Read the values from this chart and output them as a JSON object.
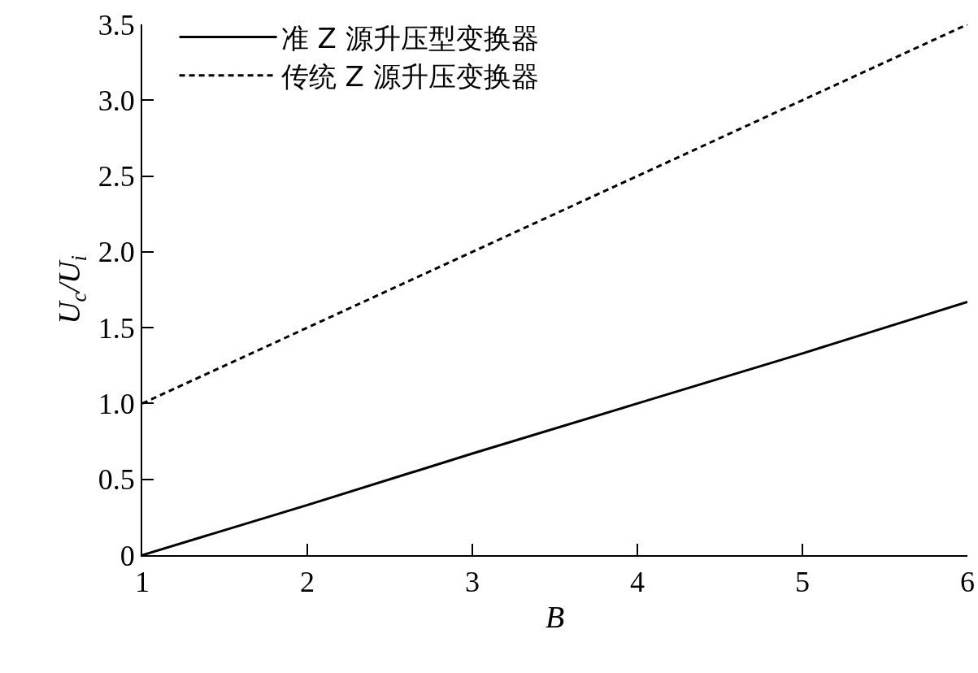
{
  "chart_data": {
    "type": "line",
    "xlabel": "B",
    "ylabel": "U$_{c}$/U$_{i}$",
    "x": [
      1,
      2,
      3,
      4,
      5,
      6
    ],
    "series": [
      {
        "name": "准 Z 源升压型变换器",
        "color": "#000000",
        "line_style": "solid",
        "values": [
          0,
          0.33,
          0.67,
          1.0,
          1.33,
          1.67
        ]
      },
      {
        "name": "传统 Z 源升压变换器",
        "color": "#000000",
        "line_style": "dashed",
        "values": [
          1,
          1.5,
          2,
          2.5,
          3,
          3.5
        ]
      }
    ],
    "xlim": [
      1,
      6
    ],
    "xticks": [
      1,
      2,
      3,
      4,
      5,
      6
    ],
    "ylim": [
      0,
      3.5
    ],
    "yticks": [
      0,
      {
        "value": 0.5,
        "label": "0.5"
      },
      {
        "value": 1,
        "label": "1.0"
      },
      {
        "value": 1.5,
        "label": "1.5"
      },
      {
        "value": 2,
        "label": "2.0"
      },
      {
        "value": 2.5,
        "label": "2.5"
      },
      {
        "value": 3,
        "label": "3.0"
      },
      {
        "value": 3.5,
        "label": "3.5"
      }
    ],
    "grid": false,
    "legend": "top left",
    "marker": "none"
  }
}
